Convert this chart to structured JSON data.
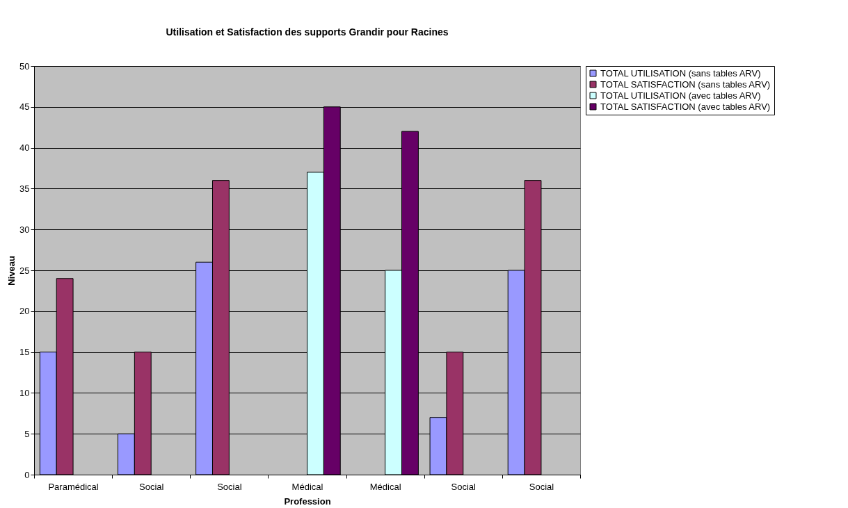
{
  "chart_data": {
    "type": "bar",
    "title": "Utilisation et Satisfaction des supports Grandir pour Racines",
    "xlabel": "Profession",
    "ylabel": "Niveau",
    "categories": [
      "Paramédical",
      "Social",
      "Social",
      "Médical",
      "Médical",
      "Social",
      "Social"
    ],
    "series": [
      {
        "name": "TOTAL UTILISATION (sans tables ARV)",
        "color": "#9999ff",
        "values": [
          15,
          5,
          26,
          null,
          null,
          7,
          25
        ]
      },
      {
        "name": "TOTAL SATISFACTION (sans tables ARV)",
        "color": "#993366",
        "values": [
          24,
          15,
          36,
          null,
          null,
          15,
          36
        ]
      },
      {
        "name": "TOTAL UTILISATION (avec tables ARV)",
        "color": "#ccffff",
        "values": [
          null,
          null,
          null,
          37,
          25,
          null,
          null
        ]
      },
      {
        "name": "TOTAL SATISFACTION (avec tables ARV)",
        "color": "#660066",
        "values": [
          null,
          null,
          null,
          45,
          42,
          null,
          null
        ]
      }
    ],
    "ylim": [
      0,
      50
    ],
    "yticks": [
      0,
      5,
      10,
      15,
      20,
      25,
      30,
      35,
      40,
      45,
      50
    ],
    "grid": "y",
    "legend": "right"
  }
}
